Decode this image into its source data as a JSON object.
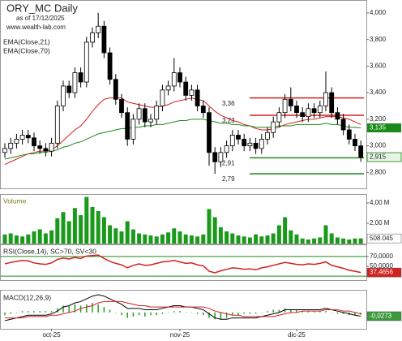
{
  "chart_data": [
    {
      "type": "candlestick",
      "title": "ORY_MC Daily",
      "subtitle": "as of 17/12/2025",
      "source": "www.wealth-lab.com",
      "ylim": [
        2.68,
        4.085
      ],
      "yticks": [
        {
          "value": 2.8,
          "label": "2,800"
        },
        {
          "value": 3.0,
          "label": "3,000"
        },
        {
          "value": 3.2,
          "label": "3,200"
        },
        {
          "value": 3.4,
          "label": "3,400"
        },
        {
          "value": 3.6,
          "label": "3,600"
        },
        {
          "value": 3.8,
          "label": "3,800"
        },
        {
          "value": 4.0,
          "label": "4,000"
        }
      ],
      "up_color": "#ffffff",
      "down_color": "#000000",
      "label_color": "#3c9a3c",
      "open": [
        2.95,
        2.98,
        3.02,
        3.05,
        3.08,
        3.06,
        3.0,
        2.98,
        2.96,
        3.02,
        3.3,
        3.45,
        3.4,
        3.55,
        3.48,
        3.78,
        3.85,
        3.9,
        3.7,
        3.5,
        3.35,
        3.25,
        3.05,
        3.2,
        3.28,
        3.18,
        3.2,
        3.3,
        3.42,
        3.45,
        3.55,
        3.48,
        3.38,
        3.42,
        3.3,
        3.25,
        2.95,
        2.88,
        2.95,
        3.0,
        3.08,
        3.05,
        3.0,
        3.02,
        2.98,
        3.05,
        3.1,
        3.18,
        3.25,
        3.35,
        3.3,
        3.25,
        3.22,
        3.28,
        3.25,
        3.3,
        3.4,
        3.25,
        3.2,
        3.12,
        3.05,
        3.0
      ],
      "high": [
        3.02,
        3.06,
        3.09,
        3.12,
        3.12,
        3.1,
        3.04,
        3.02,
        3.06,
        3.34,
        3.49,
        3.49,
        3.59,
        3.59,
        3.82,
        3.89,
        4.0,
        3.94,
        3.74,
        3.54,
        3.39,
        3.29,
        3.24,
        3.32,
        3.32,
        3.24,
        3.34,
        3.46,
        3.49,
        3.66,
        3.59,
        3.52,
        3.46,
        3.46,
        3.34,
        3.29,
        2.99,
        2.99,
        3.04,
        3.12,
        3.12,
        3.09,
        3.06,
        3.06,
        3.09,
        3.14,
        3.22,
        3.29,
        3.39,
        3.44,
        3.34,
        3.29,
        3.32,
        3.32,
        3.34,
        3.56,
        3.44,
        3.29,
        3.24,
        3.16,
        3.09,
        3.04
      ],
      "low": [
        2.91,
        2.94,
        2.98,
        3.01,
        3.02,
        2.96,
        2.94,
        2.92,
        2.92,
        2.98,
        3.26,
        3.36,
        3.36,
        3.44,
        3.44,
        3.74,
        3.81,
        3.66,
        3.46,
        3.31,
        3.21,
        3.0,
        3.01,
        3.16,
        3.14,
        3.14,
        3.16,
        3.26,
        3.38,
        3.41,
        3.44,
        3.34,
        3.34,
        3.26,
        3.21,
        2.85,
        2.79,
        2.84,
        2.91,
        2.96,
        3.01,
        2.96,
        2.96,
        2.94,
        2.94,
        3.01,
        3.06,
        3.14,
        3.21,
        3.26,
        3.21,
        3.18,
        3.18,
        3.21,
        3.21,
        3.26,
        3.21,
        3.16,
        3.08,
        3.01,
        2.96,
        2.88
      ],
      "close": [
        2.98,
        3.02,
        3.05,
        3.08,
        3.06,
        3.0,
        2.98,
        2.96,
        3.02,
        3.3,
        3.45,
        3.4,
        3.55,
        3.48,
        3.78,
        3.85,
        3.9,
        3.7,
        3.5,
        3.35,
        3.25,
        3.05,
        3.2,
        3.28,
        3.18,
        3.2,
        3.3,
        3.42,
        3.45,
        3.55,
        3.48,
        3.38,
        3.42,
        3.3,
        3.25,
        2.95,
        2.88,
        2.95,
        3.0,
        3.08,
        3.05,
        3.0,
        3.02,
        2.98,
        3.05,
        3.1,
        3.18,
        3.25,
        3.35,
        3.3,
        3.25,
        3.22,
        3.28,
        3.25,
        3.3,
        3.4,
        3.25,
        3.2,
        3.12,
        3.05,
        3.0,
        2.915
      ],
      "value_labels": [
        null,
        null,
        null,
        null,
        null,
        null,
        null,
        null,
        null,
        null,
        null,
        null,
        null,
        null,
        null,
        null,
        null,
        null,
        null,
        null,
        null,
        null,
        null,
        null,
        null,
        null,
        null,
        null,
        null,
        null,
        null,
        null,
        null,
        null,
        null,
        null,
        null,
        null,
        null,
        null,
        null,
        null,
        null,
        null,
        null,
        null,
        null,
        null,
        null,
        null,
        null,
        null,
        null,
        null,
        null,
        null,
        null,
        null,
        null,
        null,
        null,
        "2,915"
      ],
      "series": [
        {
          "name": "EMA(Close,21)",
          "color": "#d42020",
          "values": [
            2.86,
            2.88,
            2.9,
            2.92,
            2.94,
            2.95,
            2.96,
            2.96,
            2.97,
            3.0,
            3.04,
            3.08,
            3.12,
            3.15,
            3.2,
            3.26,
            3.31,
            3.35,
            3.36,
            3.36,
            3.36,
            3.33,
            3.32,
            3.31,
            3.3,
            3.29,
            3.29,
            3.3,
            3.31,
            3.33,
            3.34,
            3.35,
            3.36,
            3.35,
            3.34,
            3.3,
            3.26,
            3.23,
            3.21,
            3.19,
            3.18,
            3.16,
            3.15,
            3.13,
            3.12,
            3.12,
            3.13,
            3.14,
            3.16,
            3.17,
            3.18,
            3.19,
            3.2,
            3.2,
            3.21,
            3.22,
            3.22,
            3.22,
            3.21,
            3.2,
            3.18,
            3.16
          ]
        },
        {
          "name": "EMA(Close,70)",
          "color": "#1a8a1a",
          "values": [
            2.9,
            2.91,
            2.92,
            2.93,
            2.94,
            2.94,
            2.95,
            2.95,
            2.96,
            2.97,
            2.99,
            3.0,
            3.02,
            3.03,
            3.05,
            3.07,
            3.09,
            3.1,
            3.11,
            3.12,
            3.13,
            3.13,
            3.14,
            3.14,
            3.15,
            3.15,
            3.16,
            3.16,
            3.17,
            3.18,
            3.19,
            3.19,
            3.2,
            3.2,
            3.2,
            3.19,
            3.18,
            3.17,
            3.17,
            3.16,
            3.16,
            3.15,
            3.15,
            3.14,
            3.14,
            3.14,
            3.14,
            3.15,
            3.15,
            3.15,
            3.16,
            3.16,
            3.16,
            3.16,
            3.16,
            3.17,
            3.16,
            3.16,
            3.15,
            3.14,
            3.14,
            3.135
          ],
          "value_labels": [
            null,
            null,
            null,
            null,
            null,
            null,
            null,
            null,
            null,
            null,
            null,
            null,
            null,
            null,
            null,
            null,
            null,
            null,
            null,
            null,
            null,
            null,
            null,
            null,
            null,
            null,
            null,
            null,
            null,
            null,
            null,
            null,
            null,
            null,
            null,
            null,
            null,
            null,
            null,
            null,
            null,
            null,
            null,
            null,
            null,
            null,
            null,
            null,
            null,
            null,
            null,
            null,
            null,
            null,
            null,
            null,
            null,
            null,
            null,
            null,
            null,
            "3,135"
          ]
        }
      ],
      "levels": [
        {
          "value": 3.36,
          "label": "3,36",
          "color": "#d42020"
        },
        {
          "value": 3.23,
          "label": "3,23",
          "color": "#d42020"
        },
        {
          "value": 2.91,
          "label": "2,91",
          "color": "#1a8a1a"
        },
        {
          "value": 2.79,
          "label": "2,79",
          "color": "#1a8a1a"
        }
      ]
    },
    {
      "type": "bar",
      "title": "Volume",
      "ylim": [
        0,
        4800000
      ],
      "color": "#1a9a1a",
      "yticks": [
        {
          "value": 2000000,
          "label": "2,00 M"
        },
        {
          "value": 4000000,
          "label": "4,00 M"
        }
      ],
      "values": [
        900000,
        1000000,
        800000,
        700000,
        900000,
        1200000,
        1400000,
        1000000,
        1300000,
        2500000,
        3100000,
        2200000,
        3500000,
        2800000,
        4600000,
        3600000,
        3200000,
        2600000,
        1800000,
        1500000,
        1200000,
        2200000,
        1400000,
        1000000,
        900000,
        800000,
        700000,
        900000,
        1100000,
        1500000,
        1200000,
        900000,
        800000,
        700000,
        900000,
        3400000,
        2600000,
        1600000,
        1200000,
        1000000,
        800000,
        700000,
        600000,
        900000,
        700000,
        800000,
        1000000,
        1800000,
        2600000,
        1300000,
        900000,
        500000,
        400000,
        500000,
        600000,
        1800000,
        1000000,
        600000,
        500000,
        400000,
        500000,
        508045
      ],
      "value_labels": [
        null,
        null,
        null,
        null,
        null,
        null,
        null,
        null,
        null,
        null,
        null,
        null,
        null,
        null,
        null,
        null,
        null,
        null,
        null,
        null,
        null,
        null,
        null,
        null,
        null,
        null,
        null,
        null,
        null,
        null,
        null,
        null,
        null,
        null,
        null,
        null,
        null,
        null,
        null,
        null,
        null,
        null,
        null,
        null,
        null,
        null,
        null,
        null,
        null,
        null,
        null,
        null,
        null,
        null,
        null,
        null,
        null,
        null,
        null,
        null,
        null,
        "508.045"
      ]
    },
    {
      "type": "line",
      "title": "RSI(Close,14), SC>70, SV<30",
      "ylim": [
        22,
        93
      ],
      "color": "#d42020",
      "yticks": [
        {
          "value": 50,
          "label": "50,0000"
        },
        {
          "value": 70,
          "label": "70,0000"
        }
      ],
      "levels": [
        70,
        30
      ],
      "level_color": "#1a8a1a",
      "values": [
        55,
        58,
        60,
        62,
        61,
        57,
        55,
        54,
        57,
        64,
        67,
        65,
        68,
        66,
        71,
        72,
        73,
        66,
        60,
        56,
        53,
        47,
        52,
        55,
        52,
        53,
        56,
        59,
        60,
        62,
        59,
        56,
        57,
        53,
        51,
        40,
        37,
        41,
        44,
        47,
        46,
        44,
        45,
        43,
        47,
        49,
        52,
        55,
        58,
        56,
        54,
        53,
        55,
        54,
        56,
        59,
        52,
        49,
        46,
        42,
        40,
        37.4656
      ],
      "value_labels": [
        null,
        null,
        null,
        null,
        null,
        null,
        null,
        null,
        null,
        null,
        null,
        null,
        null,
        null,
        null,
        null,
        null,
        null,
        null,
        null,
        null,
        null,
        null,
        null,
        null,
        null,
        null,
        null,
        null,
        null,
        null,
        null,
        null,
        null,
        null,
        null,
        null,
        null,
        null,
        null,
        null,
        null,
        null,
        null,
        null,
        null,
        null,
        null,
        null,
        null,
        null,
        null,
        null,
        null,
        null,
        null,
        null,
        null,
        null,
        null,
        null,
        "37,4656"
      ]
    },
    {
      "type": "macd",
      "title": "MACD(12,26,9)",
      "ylim": [
        -0.12,
        0.16
      ],
      "categories": [
        null,
        null,
        null,
        null,
        null,
        null,
        null,
        null,
        "oct-25",
        null,
        null,
        null,
        null,
        null,
        null,
        null,
        null,
        null,
        null,
        null,
        null,
        null,
        null,
        null,
        null,
        null,
        null,
        null,
        null,
        null,
        "nov-25",
        null,
        null,
        null,
        null,
        null,
        null,
        null,
        null,
        null,
        null,
        null,
        null,
        null,
        null,
        null,
        null,
        null,
        null,
        null,
        "dic-25",
        null,
        null,
        null,
        null,
        null,
        null,
        null,
        null,
        null,
        null,
        null
      ],
      "histogram": {
        "color": "#22a022",
        "values": [
          -0.02,
          -0.01,
          0,
          0.01,
          0.01,
          0.01,
          0.01,
          0.01,
          0.01,
          0.03,
          0.05,
          0.05,
          0.06,
          0.05,
          0.06,
          0.07,
          0.06,
          0.04,
          0.02,
          0,
          -0.02,
          -0.04,
          -0.03,
          -0.02,
          -0.03,
          -0.02,
          -0.02,
          -0.01,
          0,
          0.01,
          0.01,
          0,
          0,
          -0.01,
          -0.02,
          -0.04,
          -0.05,
          -0.05,
          -0.04,
          -0.02,
          -0.02,
          -0.01,
          -0.01,
          -0.01,
          0,
          0.01,
          0.02,
          0.02,
          0.03,
          0.02,
          0.02,
          0.01,
          0.01,
          0.01,
          0.01,
          0.01,
          0,
          -0.01,
          -0.01,
          -0.02,
          -0.02,
          -0.0173
        ]
      },
      "series": [
        {
          "color": "#000000",
          "values": [
            -0.06,
            -0.05,
            -0.04,
            -0.03,
            -0.02,
            -0.02,
            -0.02,
            -0.02,
            -0.01,
            0.01,
            0.04,
            0.05,
            0.07,
            0.08,
            0.1,
            0.12,
            0.13,
            0.12,
            0.1,
            0.08,
            0.06,
            0.03,
            0.03,
            0.03,
            0.02,
            0.02,
            0.02,
            0.03,
            0.04,
            0.05,
            0.05,
            0.04,
            0.04,
            0.03,
            0.02,
            -0.01,
            -0.04,
            -0.05,
            -0.05,
            -0.04,
            -0.04,
            -0.04,
            -0.04,
            -0.04,
            -0.03,
            -0.02,
            -0.01,
            0.0,
            0.02,
            0.02,
            0.02,
            0.02,
            0.02,
            0.02,
            0.02,
            0.03,
            0.02,
            0.01,
            0.0,
            -0.01,
            -0.02,
            -0.0273
          ],
          "value_labels": [
            null,
            null,
            null,
            null,
            null,
            null,
            null,
            null,
            null,
            null,
            null,
            null,
            null,
            null,
            null,
            null,
            null,
            null,
            null,
            null,
            null,
            null,
            null,
            null,
            null,
            null,
            null,
            null,
            null,
            null,
            null,
            null,
            null,
            null,
            null,
            null,
            null,
            null,
            null,
            null,
            null,
            null,
            null,
            null,
            null,
            null,
            null,
            null,
            null,
            null,
            null,
            null,
            null,
            null,
            null,
            null,
            null,
            null,
            null,
            null,
            null,
            "-0,0273"
          ]
        },
        {
          "color": "#d42020",
          "values": [
            -0.04,
            -0.04,
            -0.04,
            -0.04,
            -0.03,
            -0.03,
            -0.03,
            -0.03,
            -0.02,
            -0.02,
            -0.01,
            0.0,
            0.01,
            0.03,
            0.04,
            0.05,
            0.07,
            0.08,
            0.08,
            0.08,
            0.08,
            0.07,
            0.06,
            0.05,
            0.05,
            0.04,
            0.04,
            0.04,
            0.04,
            0.04,
            0.04,
            0.04,
            0.04,
            0.04,
            0.04,
            0.03,
            0.01,
            0.0,
            -0.01,
            -0.02,
            -0.02,
            -0.03,
            -0.03,
            -0.03,
            -0.03,
            -0.03,
            -0.03,
            -0.02,
            -0.01,
            0.0,
            0.0,
            0.01,
            0.01,
            0.01,
            0.01,
            0.02,
            0.02,
            0.02,
            0.01,
            0.01,
            0.0,
            -0.01
          ]
        }
      ]
    }
  ]
}
